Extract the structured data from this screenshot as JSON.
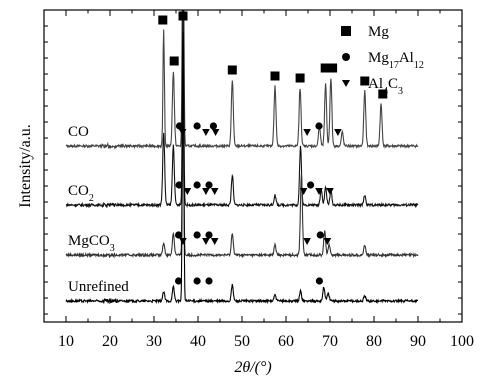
{
  "chart_data": {
    "type": "line",
    "xlabel": "2θ/(°)",
    "ylabel": "Intensity/a.u.",
    "xlim": [
      5,
      100
    ],
    "xticks": [
      10,
      20,
      30,
      40,
      50,
      60,
      70,
      80,
      90,
      100
    ],
    "yticks_labeled": false,
    "grid": false,
    "legend_position": "top-right",
    "legend": [
      {
        "marker": "square",
        "label": "Mg",
        "parts": [
          {
            "t": "Mg",
            "sub": false
          }
        ]
      },
      {
        "marker": "circle",
        "label": "Mg17Al12",
        "parts": [
          {
            "t": "Mg",
            "sub": false
          },
          {
            "t": "17",
            "sub": true
          },
          {
            "t": "Al",
            "sub": false
          },
          {
            "t": "12",
            "sub": true
          }
        ]
      },
      {
        "marker": "triangle",
        "label": "Al4C3",
        "parts": [
          {
            "t": "Al",
            "sub": false
          },
          {
            "t": "4",
            "sub": true
          },
          {
            "t": "C",
            "sub": false
          },
          {
            "t": "3",
            "sub": true
          }
        ]
      }
    ],
    "series": [
      {
        "name": "CO",
        "parts": [
          {
            "t": "CO",
            "sub": false
          }
        ],
        "color": "#444444",
        "baseline": 146,
        "peaks": [
          [
            32.2,
            116
          ],
          [
            34.4,
            75
          ],
          [
            36.6,
            315
          ],
          [
            47.8,
            66
          ],
          [
            57.5,
            60
          ],
          [
            63.2,
            58
          ],
          [
            67.6,
            20
          ],
          [
            69.0,
            62
          ],
          [
            70.2,
            68
          ],
          [
            72.8,
            14
          ],
          [
            77.9,
            55
          ],
          [
            81.6,
            42
          ]
        ],
        "markers": [
          {
            "x": 32.0,
            "type": "square"
          },
          {
            "x": 34.6,
            "type": "square"
          },
          {
            "x": 36.6,
            "type": "square"
          },
          {
            "x": 47.8,
            "type": "square"
          },
          {
            "x": 57.5,
            "type": "square"
          },
          {
            "x": 63.2,
            "type": "square"
          },
          {
            "x": 68.9,
            "type": "square"
          },
          {
            "x": 70.6,
            "type": "square"
          },
          {
            "x": 77.9,
            "type": "square"
          },
          {
            "x": 82.0,
            "type": "square"
          },
          {
            "x": 35.8,
            "type": "circle"
          },
          {
            "x": 39.8,
            "type": "circle"
          },
          {
            "x": 43.5,
            "type": "circle"
          },
          {
            "x": 67.5,
            "type": "circle"
          },
          {
            "x": 36.5,
            "type": "triangle"
          },
          {
            "x": 41.8,
            "type": "triangle"
          },
          {
            "x": 44.0,
            "type": "triangle"
          },
          {
            "x": 64.8,
            "type": "triangle"
          },
          {
            "x": 71.8,
            "type": "triangle"
          }
        ]
      },
      {
        "name": "CO2",
        "parts": [
          {
            "t": "CO",
            "sub": false
          },
          {
            "t": "2",
            "sub": true
          }
        ],
        "color": "#111111",
        "baseline": 205,
        "peaks": [
          [
            32.2,
            72
          ],
          [
            34.4,
            60
          ],
          [
            36.6,
            195
          ],
          [
            47.8,
            30
          ],
          [
            57.5,
            10
          ],
          [
            63.3,
            58
          ],
          [
            68.0,
            16
          ],
          [
            69.0,
            18
          ],
          [
            70.2,
            14
          ],
          [
            77.9,
            10
          ]
        ],
        "markers": [
          {
            "x": 35.7,
            "type": "circle"
          },
          {
            "x": 39.8,
            "type": "circle"
          },
          {
            "x": 42.5,
            "type": "circle"
          },
          {
            "x": 65.6,
            "type": "circle"
          },
          {
            "x": 37.6,
            "type": "triangle"
          },
          {
            "x": 41.8,
            "type": "triangle"
          },
          {
            "x": 43.8,
            "type": "triangle"
          },
          {
            "x": 64.0,
            "type": "triangle"
          },
          {
            "x": 67.5,
            "type": "triangle"
          },
          {
            "x": 70.0,
            "type": "triangle"
          }
        ]
      },
      {
        "name": "MgCO3",
        "parts": [
          {
            "t": "MgCO",
            "sub": false
          },
          {
            "t": "3",
            "sub": true
          }
        ],
        "color": "#333333",
        "baseline": 255,
        "peaks": [
          [
            32.2,
            12
          ],
          [
            34.4,
            22
          ],
          [
            36.6,
            160
          ],
          [
            47.8,
            22
          ],
          [
            57.5,
            10
          ],
          [
            63.5,
            82
          ],
          [
            68.8,
            24
          ],
          [
            69.8,
            10
          ],
          [
            77.9,
            10
          ]
        ],
        "markers": [
          {
            "x": 35.6,
            "type": "circle"
          },
          {
            "x": 39.8,
            "type": "circle"
          },
          {
            "x": 42.5,
            "type": "circle"
          },
          {
            "x": 67.8,
            "type": "circle"
          },
          {
            "x": 36.6,
            "type": "triangle"
          },
          {
            "x": 41.8,
            "type": "triangle"
          },
          {
            "x": 43.8,
            "type": "triangle"
          },
          {
            "x": 64.8,
            "type": "triangle"
          },
          {
            "x": 69.4,
            "type": "triangle"
          }
        ]
      },
      {
        "name": "Unrefined",
        "parts": [
          {
            "t": "Unrefined",
            "sub": false
          }
        ],
        "color": "#000000",
        "baseline": 301,
        "peaks": [
          [
            32.2,
            9
          ],
          [
            34.4,
            14
          ],
          [
            36.6,
            270
          ],
          [
            47.8,
            16
          ],
          [
            57.5,
            6
          ],
          [
            63.3,
            10
          ],
          [
            68.6,
            14
          ],
          [
            69.6,
            8
          ],
          [
            77.9,
            5
          ]
        ],
        "markers": [
          {
            "x": 35.6,
            "type": "circle"
          },
          {
            "x": 39.8,
            "type": "circle"
          },
          {
            "x": 42.5,
            "type": "circle"
          },
          {
            "x": 67.6,
            "type": "circle"
          }
        ]
      }
    ]
  }
}
